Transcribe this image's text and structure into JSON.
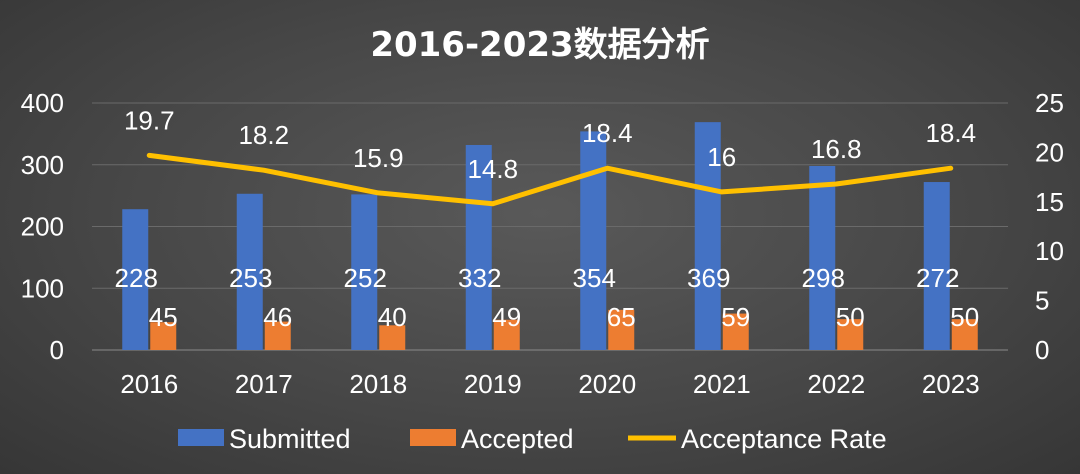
{
  "chart_data": {
    "type": "bar",
    "title": "2016-2023数据分析",
    "categories": [
      "2016",
      "2017",
      "2018",
      "2019",
      "2020",
      "2021",
      "2022",
      "2023"
    ],
    "series": [
      {
        "name": "Submitted",
        "type": "bar",
        "axis": "left",
        "color": "#4472C4",
        "values": [
          228,
          253,
          252,
          332,
          354,
          369,
          298,
          272
        ]
      },
      {
        "name": "Accepted",
        "type": "bar",
        "axis": "left",
        "color": "#ED7D31",
        "values": [
          45,
          46,
          40,
          49,
          65,
          59,
          50,
          50
        ]
      },
      {
        "name": "Acceptance Rate",
        "type": "line",
        "axis": "right",
        "color": "#FFC000",
        "values": [
          19.7,
          18.2,
          15.9,
          14.8,
          18.4,
          16,
          16.8,
          18.4
        ]
      }
    ],
    "y_left": {
      "min": 0,
      "max": 400,
      "ticks": [
        "0",
        "100",
        "200",
        "300",
        "400"
      ]
    },
    "y_right": {
      "min": 0,
      "max": 25,
      "ticks": [
        "0",
        "5",
        "10",
        "15",
        "20",
        "25"
      ]
    },
    "grid": true,
    "legend": "bottom"
  }
}
